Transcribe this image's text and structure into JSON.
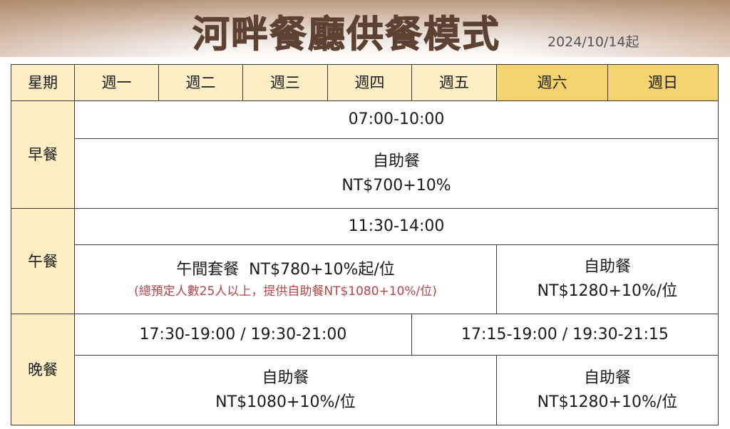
{
  "title": "河畔餐廳供餐模式",
  "effective_date": "2024/10/14起",
  "colors": {
    "title": "#5b4232",
    "header": "#fdeec6",
    "weekend_header": "#f4d46e",
    "note": "#b54646"
  },
  "header": {
    "label": "星期",
    "days": [
      "週一",
      "週二",
      "週三",
      "週四",
      "週五",
      "週六",
      "週日"
    ]
  },
  "breakfast": {
    "label": "早餐",
    "time": "07:00-10:00",
    "type": "自助餐",
    "price": "NT$700+10%"
  },
  "lunch": {
    "label": "午餐",
    "time": "11:30-14:00",
    "weekday_title": "午間套餐  NT$780+10%起/位",
    "weekday_note": "(總預定人數25人以上，提供自助餐NT$1080+10%/位)",
    "weekend_type": "自助餐",
    "weekend_price": "NT$1280+10%/位"
  },
  "dinner": {
    "label": "晚餐",
    "weekday_time": "17:30-19:00 / 19:30-21:00",
    "weekend_time": "17:15-19:00 / 19:30-21:15",
    "weekday_type": "自助餐",
    "weekday_price": "NT$1080+10%/位",
    "weekend_type": "自助餐",
    "weekend_price": "NT$1280+10%/位"
  }
}
